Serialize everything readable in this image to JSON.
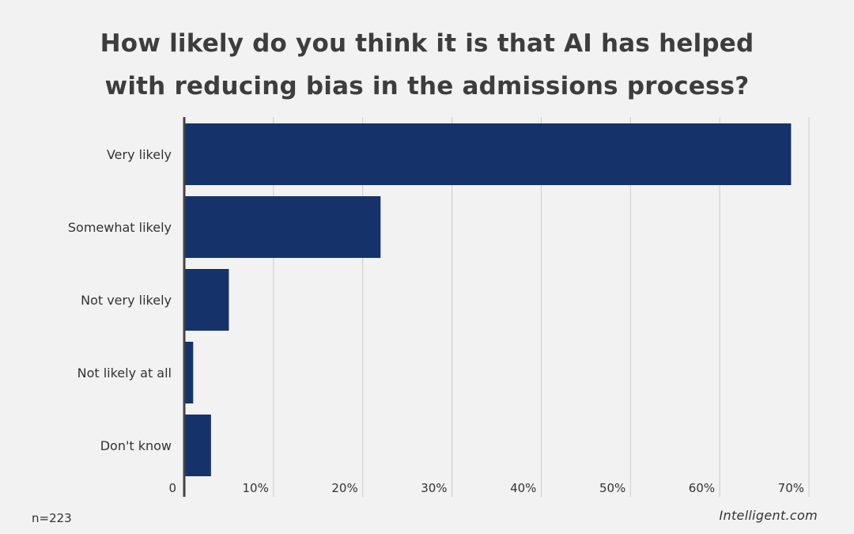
{
  "chart_data": {
    "type": "bar",
    "orientation": "horizontal",
    "title_lines": [
      "How likely do you think it is that AI has helped",
      "with reducing bias in the admissions process?"
    ],
    "categories": [
      "Very likely",
      "Somewhat likely",
      "Not very likely",
      "Not likely at all",
      "Don't know"
    ],
    "values": [
      68,
      22,
      5,
      1,
      3
    ],
    "unit": "%",
    "xlim": [
      0,
      70
    ],
    "xticks": [
      {
        "value": 0,
        "label": "0"
      },
      {
        "value": 10,
        "label": "10%"
      },
      {
        "value": 20,
        "label": "20%"
      },
      {
        "value": 30,
        "label": "30%"
      },
      {
        "value": 40,
        "label": "40%"
      },
      {
        "value": 50,
        "label": "50%"
      },
      {
        "value": 60,
        "label": "60%"
      },
      {
        "value": 70,
        "label": "70%"
      }
    ],
    "grid": true,
    "bar_color": "#15336a",
    "grid_color": "#cccccc",
    "axis_color": "#444444"
  },
  "footer": {
    "sample_size": "n=223",
    "source": "Intelligent.com"
  }
}
